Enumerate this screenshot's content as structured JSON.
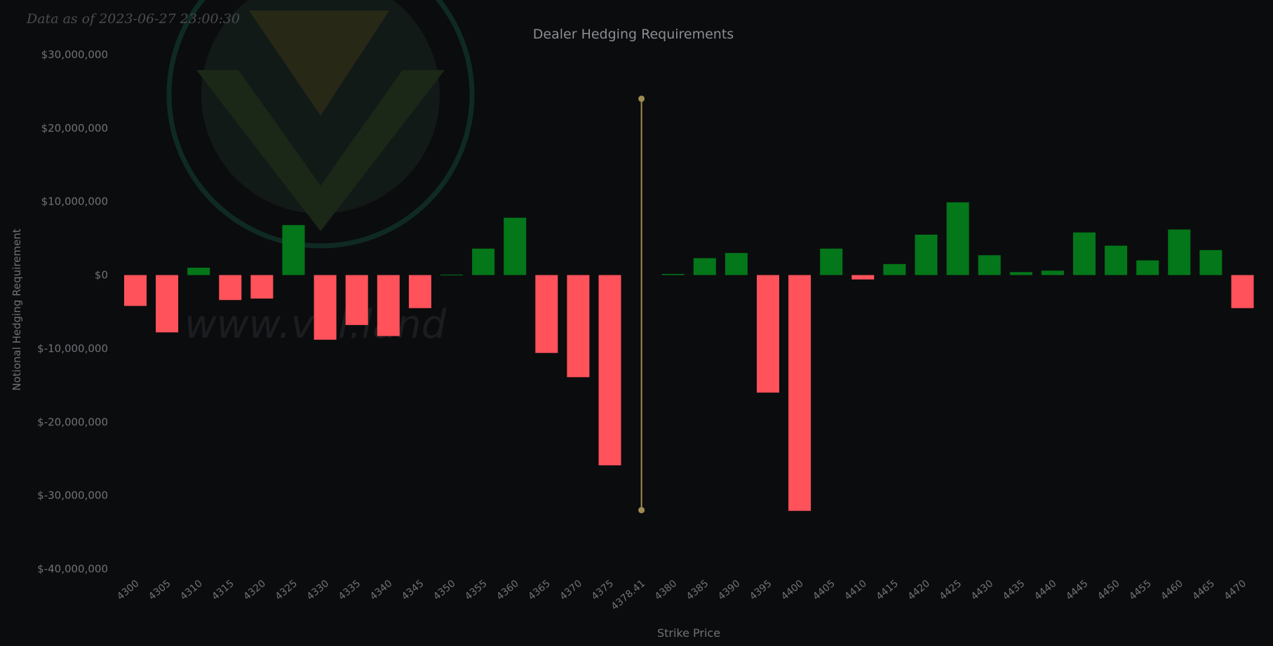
{
  "timestamp": "Data as of 2023-06-27 23:00:30",
  "watermark_text": "www.vol.land",
  "colors": {
    "background": "#0b0c0e",
    "positive": "#037719",
    "negative": "#ff525b",
    "spot_line": "#a08c52",
    "axis_text": "#6f7276",
    "title_text": "#8a8d91",
    "logo_stroke": "#0f2a22",
    "logo_fill": "#1c2a1e"
  },
  "chart_data": {
    "type": "bar",
    "title": "Dealer Hedging Requirements",
    "xlabel": "Strike Price",
    "ylabel": "Notional Hedging Requirement",
    "ylim": [
      -40000000,
      30000000
    ],
    "yticks": [
      30000000,
      20000000,
      10000000,
      0,
      -10000000,
      -20000000,
      -30000000,
      -40000000
    ],
    "ytick_labels": [
      "$30,000,000",
      "$20,000,000",
      "$10,000,000",
      "$0",
      "$-10,000,000",
      "$-20,000,000",
      "$-30,000,000",
      "$-40,000,000"
    ],
    "categories": [
      "4300",
      "4305",
      "4310",
      "4315",
      "4320",
      "4325",
      "4330",
      "4335",
      "4340",
      "4345",
      "4350",
      "4355",
      "4360",
      "4365",
      "4370",
      "4375",
      "4378.41",
      "4380",
      "4385",
      "4390",
      "4395",
      "4400",
      "4405",
      "4410",
      "4415",
      "4420",
      "4425",
      "4430",
      "4435",
      "4440",
      "4445",
      "4450",
      "4455",
      "4460",
      "4465",
      "4470"
    ],
    "values": [
      -4200000,
      -7800000,
      1000000,
      -3400000,
      -3200000,
      6800000,
      -8800000,
      -6800000,
      -8300000,
      -4500000,
      50000,
      3600000,
      7800000,
      -10600000,
      -13900000,
      -25900000,
      null,
      150000,
      2300000,
      3000000,
      -16000000,
      -32100000,
      3600000,
      -600000,
      1500000,
      5500000,
      9900000,
      2700000,
      400000,
      600000,
      5800000,
      4000000,
      2000000,
      6200000,
      3400000,
      -4500000
    ],
    "spot_marker": {
      "category": "4378.41",
      "y_range": [
        -32000000,
        24000000
      ]
    }
  }
}
